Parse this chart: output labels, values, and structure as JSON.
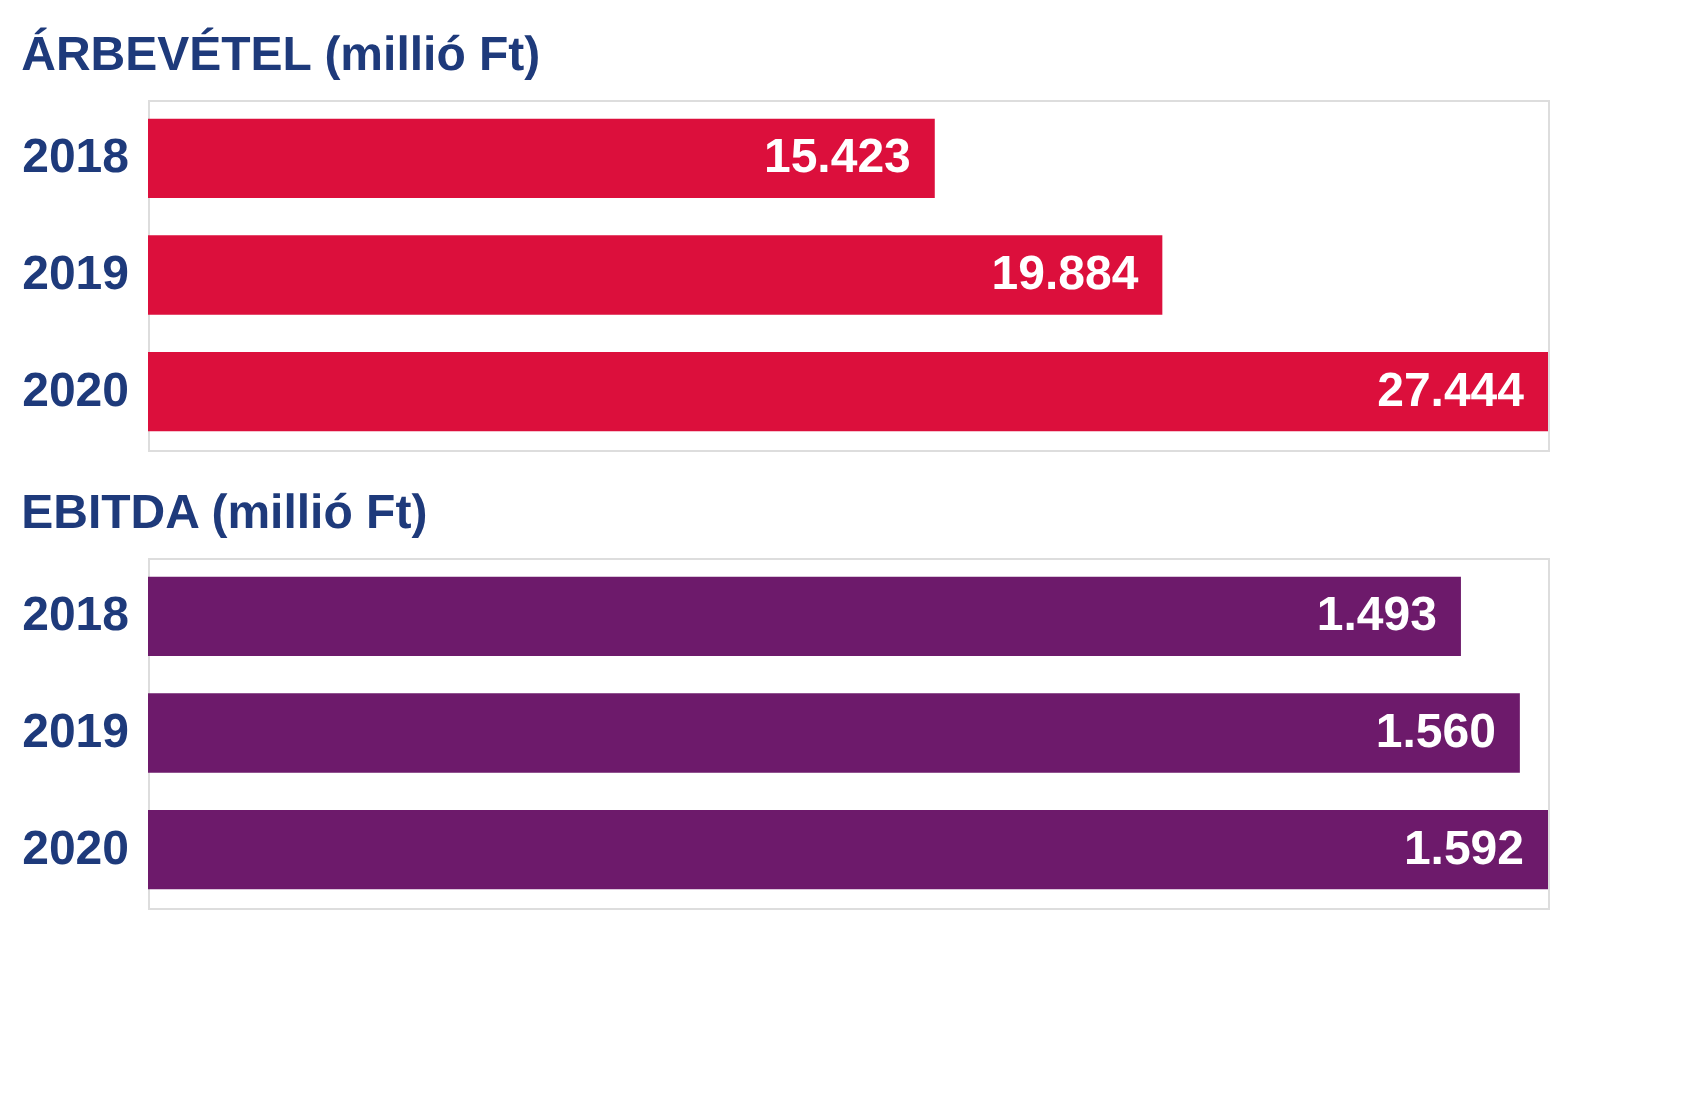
{
  "chart_data": [
    {
      "type": "bar",
      "orientation": "horizontal",
      "title": "ÁRBEVÉTEL (millió Ft)",
      "categories": [
        "2018",
        "2019",
        "2020"
      ],
      "values": [
        15423,
        19884,
        27444
      ],
      "value_labels": [
        "15.423",
        "19.884",
        "27.444"
      ],
      "color": "#dc0f3c"
    },
    {
      "type": "bar",
      "orientation": "horizontal",
      "title": "EBITDA (millió Ft)",
      "categories": [
        "2018",
        "2019",
        "2020"
      ],
      "values": [
        1493,
        1560,
        1592
      ],
      "value_labels": [
        "1.493",
        "1.560",
        "1.592"
      ],
      "color": "#6d1a6b"
    }
  ]
}
